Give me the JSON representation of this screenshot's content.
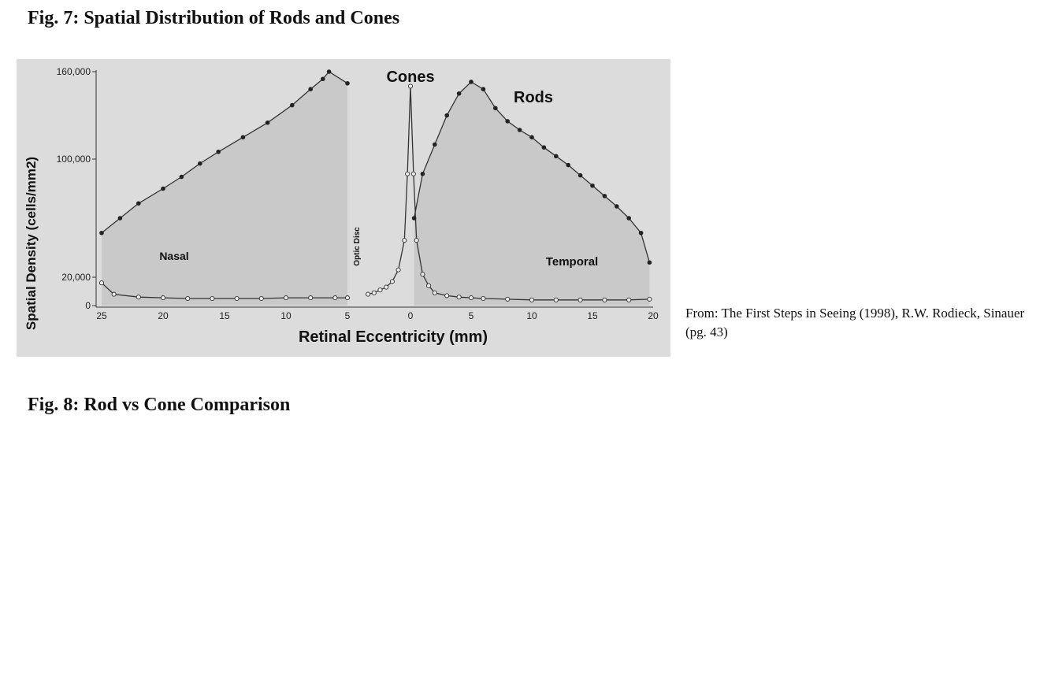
{
  "fig7": {
    "title": "Fig. 7: Spatial Distribution of Rods and Cones",
    "caption": "From: The First Steps in Seeing (1998), R.W. Rodieck, Sinauer (pg. 43)"
  },
  "fig8": {
    "title": "Fig. 8: Rod vs Cone Comparison"
  },
  "chart_data": {
    "type": "line",
    "xlabel": "Retinal Eccentricity (mm)",
    "ylabel": "Spatial Density (cells/mm2)",
    "y_ticks": [
      "0",
      "20,000",
      "100,000",
      "160,000"
    ],
    "y_tick_values": [
      0,
      20000,
      100000,
      160000
    ],
    "x_ticks_nasal": [
      "25",
      "20",
      "15",
      "10",
      "5"
    ],
    "x_ticks_temporal": [
      "0",
      "5",
      "10",
      "15",
      "20"
    ],
    "ylim": [
      0,
      160000
    ],
    "xlim": [
      -25,
      20
    ],
    "region_labels": {
      "nasal": "Nasal",
      "temporal": "Temporal",
      "optic_disc": "Optic Disc"
    },
    "series": [
      {
        "name": "Rods",
        "marker": "filled",
        "segments": [
          {
            "x": [
              -25,
              -23.5,
              -22,
              -20,
              -18.5,
              -17,
              -15.5,
              -13.5,
              -11.5,
              -9.5,
              -8,
              -7,
              -6.5,
              -5
            ],
            "y": [
              50000,
              60000,
              70000,
              80000,
              88000,
              97000,
              105000,
              115000,
              125000,
              137000,
              148000,
              155000,
              160000,
              152000
            ]
          },
          {
            "x": [
              0.3,
              1,
              2,
              3,
              4,
              5,
              6,
              7,
              8,
              9,
              10,
              11,
              12,
              13,
              14,
              15,
              16,
              17,
              18,
              19,
              19.7
            ],
            "y": [
              60000,
              90000,
              110000,
              130000,
              145000,
              153000,
              148000,
              135000,
              126000,
              120000,
              115000,
              108000,
              102000,
              96000,
              89000,
              82000,
              75000,
              68000,
              60000,
              50000,
              30000
            ]
          }
        ]
      },
      {
        "name": "Cones",
        "marker": "open",
        "segments": [
          {
            "x": [
              -25,
              -24,
              -22,
              -20,
              -18,
              -16,
              -14,
              -12,
              -10,
              -8,
              -6,
              -5
            ],
            "y": [
              16000,
              8000,
              6000,
              5500,
              5000,
              5000,
              5000,
              5000,
              5500,
              5500,
              5500,
              5500
            ]
          },
          {
            "x": [
              -3.5,
              -3,
              -2.5,
              -2,
              -1.5,
              -1,
              -0.5,
              -0.25,
              0,
              0.25,
              0.5,
              1,
              1.5,
              2,
              3,
              4,
              5,
              6,
              8,
              10,
              12,
              14,
              16,
              18,
              19.7
            ],
            "y": [
              8000,
              9000,
              11000,
              13000,
              17000,
              25000,
              45000,
              90000,
              150000,
              90000,
              45000,
              22000,
              14000,
              9000,
              7000,
              6000,
              5500,
              5000,
              4500,
              4000,
              4000,
              4000,
              4000,
              4000,
              4500
            ]
          }
        ]
      }
    ]
  }
}
